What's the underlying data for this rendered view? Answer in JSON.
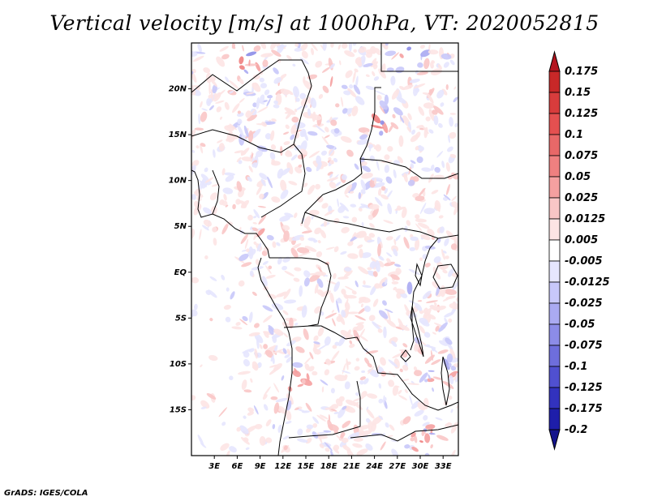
{
  "title": "Vertical velocity [m/s] at 1000hPa, VT: 2020052815",
  "credit": "GrADS: IGES/COLA",
  "map": {
    "lon_range": [
      0,
      35
    ],
    "lat_range": [
      -20,
      25
    ],
    "lat_ticks": [
      {
        "value": 20,
        "label": "20N"
      },
      {
        "value": 15,
        "label": "15N"
      },
      {
        "value": 10,
        "label": "10N"
      },
      {
        "value": 5,
        "label": "5N"
      },
      {
        "value": 0,
        "label": "EQ"
      },
      {
        "value": -5,
        "label": "5S"
      },
      {
        "value": -10,
        "label": "10S"
      },
      {
        "value": -15,
        "label": "15S"
      }
    ],
    "lon_ticks": [
      {
        "value": 3,
        "label": "3E"
      },
      {
        "value": 6,
        "label": "6E"
      },
      {
        "value": 9,
        "label": "9E"
      },
      {
        "value": 12,
        "label": "12E"
      },
      {
        "value": 15,
        "label": "15E"
      },
      {
        "value": 18,
        "label": "18E"
      },
      {
        "value": 21,
        "label": "21E"
      },
      {
        "value": 24,
        "label": "24E"
      },
      {
        "value": 27,
        "label": "27E"
      },
      {
        "value": 30,
        "label": "30E"
      },
      {
        "value": 33,
        "label": "33E"
      }
    ]
  },
  "colorbar": {
    "levels": [
      "0.175",
      "0.15",
      "0.125",
      "0.1",
      "0.075",
      "0.05",
      "0.025",
      "0.0125",
      "0.005",
      "-0.005",
      "-0.0125",
      "-0.025",
      "-0.05",
      "-0.075",
      "-0.1",
      "-0.125",
      "-0.175",
      "-0.2"
    ],
    "colors": [
      "#b4141e",
      "#c82828",
      "#d83c3c",
      "#e45050",
      "#e86868",
      "#ef8080",
      "#f5a0a0",
      "#f9c6c6",
      "#fde4e4",
      "#ffffff",
      "#e6e6fe",
      "#c8c8fa",
      "#aaaaf2",
      "#8c8ce8",
      "#6e6edc",
      "#5050d0",
      "#3232be",
      "#1e1eaa",
      "#14148c"
    ]
  }
}
